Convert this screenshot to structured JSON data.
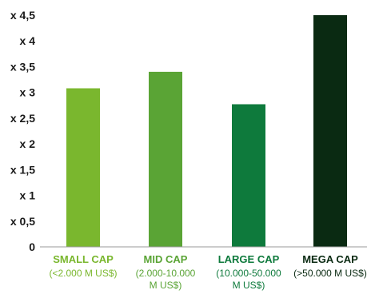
{
  "chart_data": {
    "type": "bar",
    "title": "",
    "xlabel": "",
    "ylabel": "",
    "ylim": [
      0,
      4.5
    ],
    "yticks": [
      "0",
      "x 0,5",
      "x 1",
      "x 1,5",
      "x 2",
      "x 2,5",
      "x 3",
      "x 3,5",
      "x 4",
      "x 4,5"
    ],
    "grid": false,
    "categories": [
      {
        "name": "SMALL CAP",
        "sub": [
          "(<2.000 M US$)"
        ],
        "color": "#7ab72e",
        "value": 3.08
      },
      {
        "name": "MID CAP",
        "sub": [
          "(2.000-10.000",
          "M US$)"
        ],
        "color": "#5aa435",
        "value": 3.4
      },
      {
        "name": "LARGE CAP",
        "sub": [
          "(10.000-50.000",
          "M US$)"
        ],
        "color": "#0e7a3c",
        "value": 2.77
      },
      {
        "name": "MEGA CAP",
        "sub": [
          "(>50.000 M US$)"
        ],
        "color": "#0a2a12",
        "value": 4.5
      }
    ]
  }
}
